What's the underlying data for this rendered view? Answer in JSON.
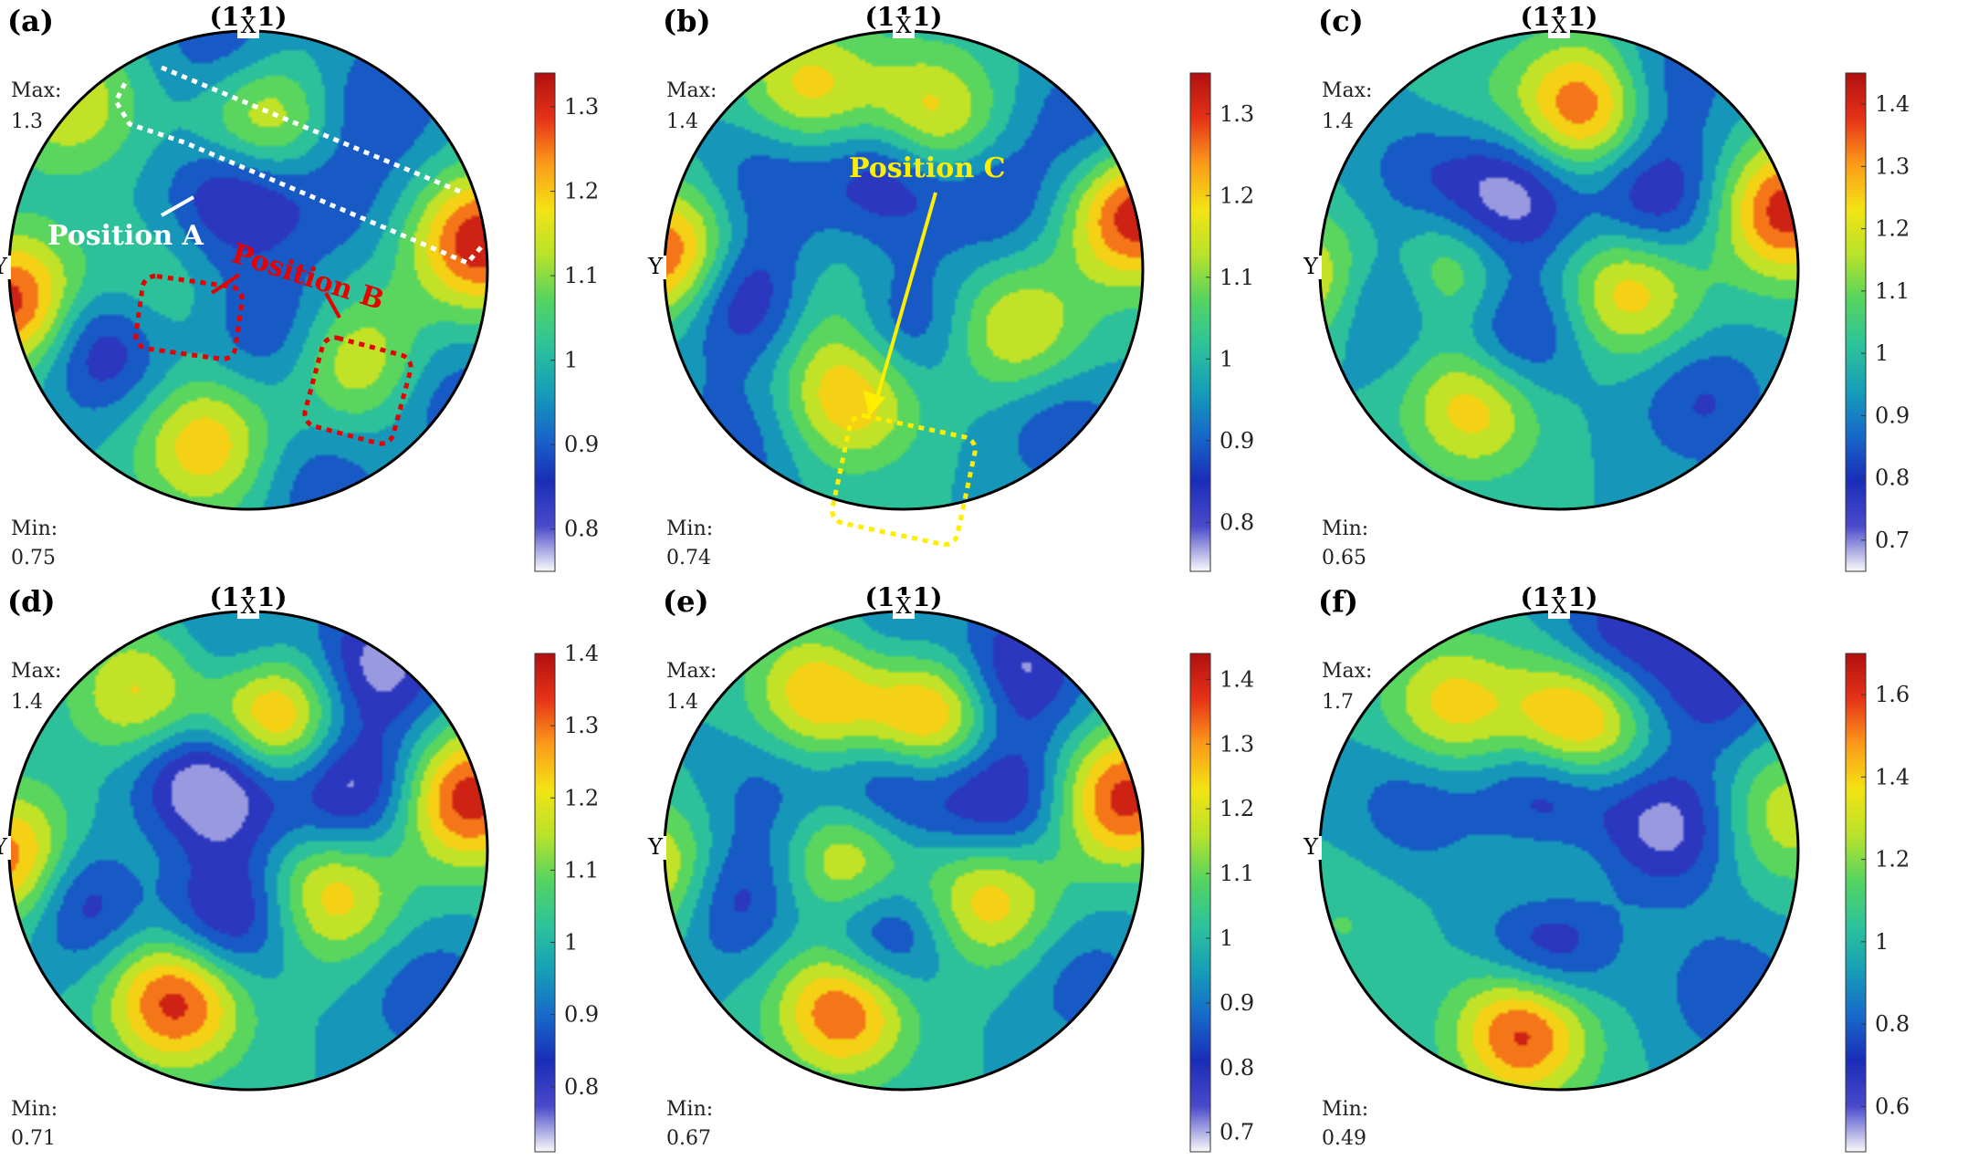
{
  "figure": {
    "colors": {
      "palette": [
        "#fafafa",
        "#4a4aca",
        "#1a2db8",
        "#1769c9",
        "#169fb7",
        "#2dc39a",
        "#55d460",
        "#b9e22a",
        "#f3e313",
        "#fc9a1a",
        "#e63218",
        "#b01010"
      ],
      "circle_stroke": "#000000",
      "annotation_white": "#ffffff",
      "annotation_red": "#e60000",
      "annotation_yellow": "#ffee00"
    }
  },
  "chart_data": [
    {
      "type": "heatmap",
      "panel": "(a)",
      "plane": "(111)",
      "x_axis_label": "X",
      "y_axis_label": "Y",
      "max_label": "Max:",
      "max_value": "1.3",
      "min_label": "Min:",
      "min_value": "0.75",
      "colorbar": {
        "range": [
          0.75,
          1.34
        ],
        "ticks": [
          "1.3",
          "1.2",
          "1.1",
          "1",
          "0.9",
          "0.8"
        ]
      },
      "annotations": [
        {
          "text": "Position  A",
          "color": "white"
        },
        {
          "text": "Position  B",
          "color": "red"
        }
      ],
      "blobs": [
        {
          "u": -0.75,
          "v": 0.7,
          "value": 1.16
        },
        {
          "u": 0.05,
          "v": 0.62,
          "value": 1.22
        },
        {
          "u": 0.97,
          "v": 0.12,
          "value": 1.33
        },
        {
          "u": -0.45,
          "v": -0.13,
          "value": 1.1
        },
        {
          "u": 0.45,
          "v": -0.38,
          "value": 1.17
        },
        {
          "u": -0.18,
          "v": -0.73,
          "value": 1.21
        },
        {
          "u": -0.99,
          "v": -0.14,
          "value": 1.32
        },
        {
          "u": -0.6,
          "v": -0.3,
          "value": 0.76
        },
        {
          "u": -0.05,
          "v": 0.33,
          "value": 0.77
        },
        {
          "u": 0.38,
          "v": 0.3,
          "value": 0.9
        },
        {
          "u": -0.1,
          "v": 0.92,
          "value": 0.86
        },
        {
          "u": 0.55,
          "v": 0.7,
          "value": 0.87
        },
        {
          "u": 0.1,
          "v": -0.25,
          "value": 0.86
        },
        {
          "u": 0.85,
          "v": -0.55,
          "value": 0.88
        },
        {
          "u": 0.3,
          "v": -0.9,
          "value": 0.88
        }
      ]
    },
    {
      "type": "heatmap",
      "panel": "(b)",
      "plane": "(111)",
      "x_axis_label": "X",
      "y_axis_label": "Y",
      "max_label": "Max:",
      "max_value": "1.4",
      "min_label": "Min:",
      "min_value": "0.74",
      "colorbar": {
        "range": [
          0.74,
          1.35
        ],
        "ticks": [
          "1.3",
          "1.2",
          "1.1",
          "1",
          "0.9",
          "0.8"
        ]
      },
      "annotations": [
        {
          "text": "Position  C",
          "color": "yellow"
        }
      ],
      "blobs": [
        {
          "u": -0.4,
          "v": 0.75,
          "value": 1.2
        },
        {
          "u": 0.1,
          "v": 0.62,
          "value": 1.25
        },
        {
          "u": 0.97,
          "v": 0.23,
          "value": 1.34
        },
        {
          "u": -0.22,
          "v": -0.15,
          "value": 1.12
        },
        {
          "u": 0.48,
          "v": -0.25,
          "value": 1.18
        },
        {
          "u": -0.22,
          "v": -0.52,
          "value": 1.24
        },
        {
          "u": -0.97,
          "v": 0.05,
          "value": 1.33
        },
        {
          "u": -0.7,
          "v": -0.1,
          "value": 0.75
        },
        {
          "u": -0.05,
          "v": 0.42,
          "value": 0.76
        },
        {
          "u": -0.05,
          "v": -0.22,
          "value": 0.78
        },
        {
          "u": -0.55,
          "v": 0.4,
          "value": 0.86
        },
        {
          "u": 0.4,
          "v": 0.3,
          "value": 0.86
        },
        {
          "u": 0.78,
          "v": 0.62,
          "value": 0.87
        },
        {
          "u": 0.65,
          "v": -0.65,
          "value": 0.87
        },
        {
          "u": -0.7,
          "v": -0.72,
          "value": 0.88
        }
      ]
    },
    {
      "type": "heatmap",
      "panel": "(c)",
      "plane": "(111)",
      "x_axis_label": "X",
      "y_axis_label": "Y",
      "max_label": "Max:",
      "max_value": "1.4",
      "min_label": "Min:",
      "min_value": "0.65",
      "colorbar": {
        "range": [
          0.65,
          1.45
        ],
        "ticks": [
          "1.4",
          "1.3",
          "1.2",
          "1.1",
          "1",
          "0.9",
          "0.8",
          "0.7"
        ]
      },
      "annotations": [],
      "blobs": [
        {
          "u": 0.1,
          "v": 0.68,
          "value": 1.38
        },
        {
          "u": 0.95,
          "v": 0.25,
          "value": 1.42
        },
        {
          "u": -0.48,
          "v": -0.02,
          "value": 1.25
        },
        {
          "u": 0.3,
          "v": -0.08,
          "value": 1.28
        },
        {
          "u": -0.35,
          "v": -0.55,
          "value": 1.3
        },
        {
          "u": -0.4,
          "v": 0.65,
          "value": 1.05
        },
        {
          "u": -0.99,
          "v": -0.05,
          "value": 1.3
        },
        {
          "u": -0.75,
          "v": -0.1,
          "value": 0.66
        },
        {
          "u": -0.2,
          "v": 0.3,
          "value": 0.67
        },
        {
          "u": 0.4,
          "v": 0.3,
          "value": 0.7
        },
        {
          "u": -0.2,
          "v": -0.28,
          "value": 0.7
        },
        {
          "u": -0.55,
          "v": 0.42,
          "value": 0.82
        },
        {
          "u": 0.6,
          "v": -0.55,
          "value": 0.8
        },
        {
          "u": 0.45,
          "v": 0.8,
          "value": 0.82
        }
      ]
    },
    {
      "type": "heatmap",
      "panel": "(d)",
      "plane": "(111)",
      "x_axis_label": "X",
      "y_axis_label": "Y",
      "max_label": "Max:",
      "max_value": "1.4",
      "min_label": "Min:",
      "min_value": "0.71",
      "colorbar": {
        "range": [
          0.71,
          1.4
        ],
        "ticks": [
          "1.4",
          "1.3",
          "1.2",
          "1.1",
          "1",
          "0.9",
          "0.8"
        ]
      },
      "annotations": [],
      "blobs": [
        {
          "u": -0.45,
          "v": 0.65,
          "value": 1.22
        },
        {
          "u": 0.1,
          "v": 0.55,
          "value": 1.36
        },
        {
          "u": 0.92,
          "v": 0.22,
          "value": 1.38
        },
        {
          "u": -0.45,
          "v": -0.05,
          "value": 1.08
        },
        {
          "u": 0.35,
          "v": -0.18,
          "value": 1.25
        },
        {
          "u": -0.3,
          "v": -0.62,
          "value": 1.38
        },
        {
          "u": -0.98,
          "v": -0.05,
          "value": 1.35
        },
        {
          "u": -0.7,
          "v": -0.18,
          "value": 0.72
        },
        {
          "u": -0.1,
          "v": 0.28,
          "value": 0.72
        },
        {
          "u": 0.43,
          "v": 0.26,
          "value": 0.72
        },
        {
          "u": -0.1,
          "v": -0.28,
          "value": 0.72
        },
        {
          "u": 0.55,
          "v": 0.78,
          "value": 0.74
        },
        {
          "u": -0.3,
          "v": 0.28,
          "value": 0.86
        },
        {
          "u": -0.05,
          "v": 0.85,
          "value": 0.86
        },
        {
          "u": 0.75,
          "v": -0.6,
          "value": 0.86
        }
      ]
    },
    {
      "type": "heatmap",
      "panel": "(e)",
      "plane": "(111)",
      "x_axis_label": "X",
      "y_axis_label": "Y",
      "max_label": "Max:",
      "max_value": "1.4",
      "min_label": "Min:",
      "min_value": "0.67",
      "colorbar": {
        "range": [
          0.67,
          1.44
        ],
        "ticks": [
          "1.4",
          "1.3",
          "1.2",
          "1.1",
          "1",
          "0.9",
          "0.8",
          "0.7"
        ]
      },
      "annotations": [],
      "blobs": [
        {
          "u": -0.35,
          "v": 0.65,
          "value": 1.3
        },
        {
          "u": 0.1,
          "v": 0.55,
          "value": 1.4
        },
        {
          "u": 0.92,
          "v": 0.22,
          "value": 1.4
        },
        {
          "u": -0.22,
          "v": -0.05,
          "value": 1.3
        },
        {
          "u": 0.35,
          "v": -0.2,
          "value": 1.28
        },
        {
          "u": -0.25,
          "v": -0.65,
          "value": 1.4
        },
        {
          "u": -0.98,
          "v": -0.1,
          "value": 1.3
        },
        {
          "u": -0.75,
          "v": -0.18,
          "value": 0.7
        },
        {
          "u": -0.05,
          "v": 0.27,
          "value": 0.7
        },
        {
          "u": 0.4,
          "v": 0.22,
          "value": 0.7
        },
        {
          "u": -0.1,
          "v": -0.35,
          "value": 0.68
        },
        {
          "u": 0.48,
          "v": 0.75,
          "value": 0.72
        },
        {
          "u": -0.55,
          "v": 0.25,
          "value": 0.86
        },
        {
          "u": -0.05,
          "v": 0.85,
          "value": 0.86
        },
        {
          "u": 0.75,
          "v": -0.55,
          "value": 0.86
        }
      ]
    },
    {
      "type": "heatmap",
      "panel": "(f)",
      "plane": "(111)",
      "x_axis_label": "X",
      "y_axis_label": "Y",
      "max_label": "Max:",
      "max_value": "1.7",
      "min_label": "Min:",
      "min_value": "0.49",
      "colorbar": {
        "range": [
          0.49,
          1.7
        ],
        "ticks": [
          "1.6",
          "1.4",
          "1.2",
          "1",
          "0.8",
          "0.6"
        ]
      },
      "annotations": [],
      "blobs": [
        {
          "u": -0.45,
          "v": 0.6,
          "value": 1.4
        },
        {
          "u": 0.08,
          "v": 0.55,
          "value": 1.6
        },
        {
          "u": 0.95,
          "v": 0.15,
          "value": 1.3
        },
        {
          "u": -0.05,
          "v": -0.1,
          "value": 1.25
        },
        {
          "u": -0.15,
          "v": -0.75,
          "value": 1.65
        },
        {
          "u": -0.9,
          "v": -0.3,
          "value": 1.1
        },
        {
          "u": -0.05,
          "v": -0.38,
          "value": 0.5
        },
        {
          "u": -0.05,
          "v": 0.22,
          "value": 0.55
        },
        {
          "u": 0.45,
          "v": 0.1,
          "value": 0.55
        },
        {
          "u": 0.25,
          "v": 0.88,
          "value": 0.6
        },
        {
          "u": 0.65,
          "v": 0.7,
          "value": 0.65
        },
        {
          "u": -0.6,
          "v": 0.2,
          "value": 0.75
        },
        {
          "u": 0.72,
          "v": -0.6,
          "value": 0.75
        }
      ]
    }
  ]
}
